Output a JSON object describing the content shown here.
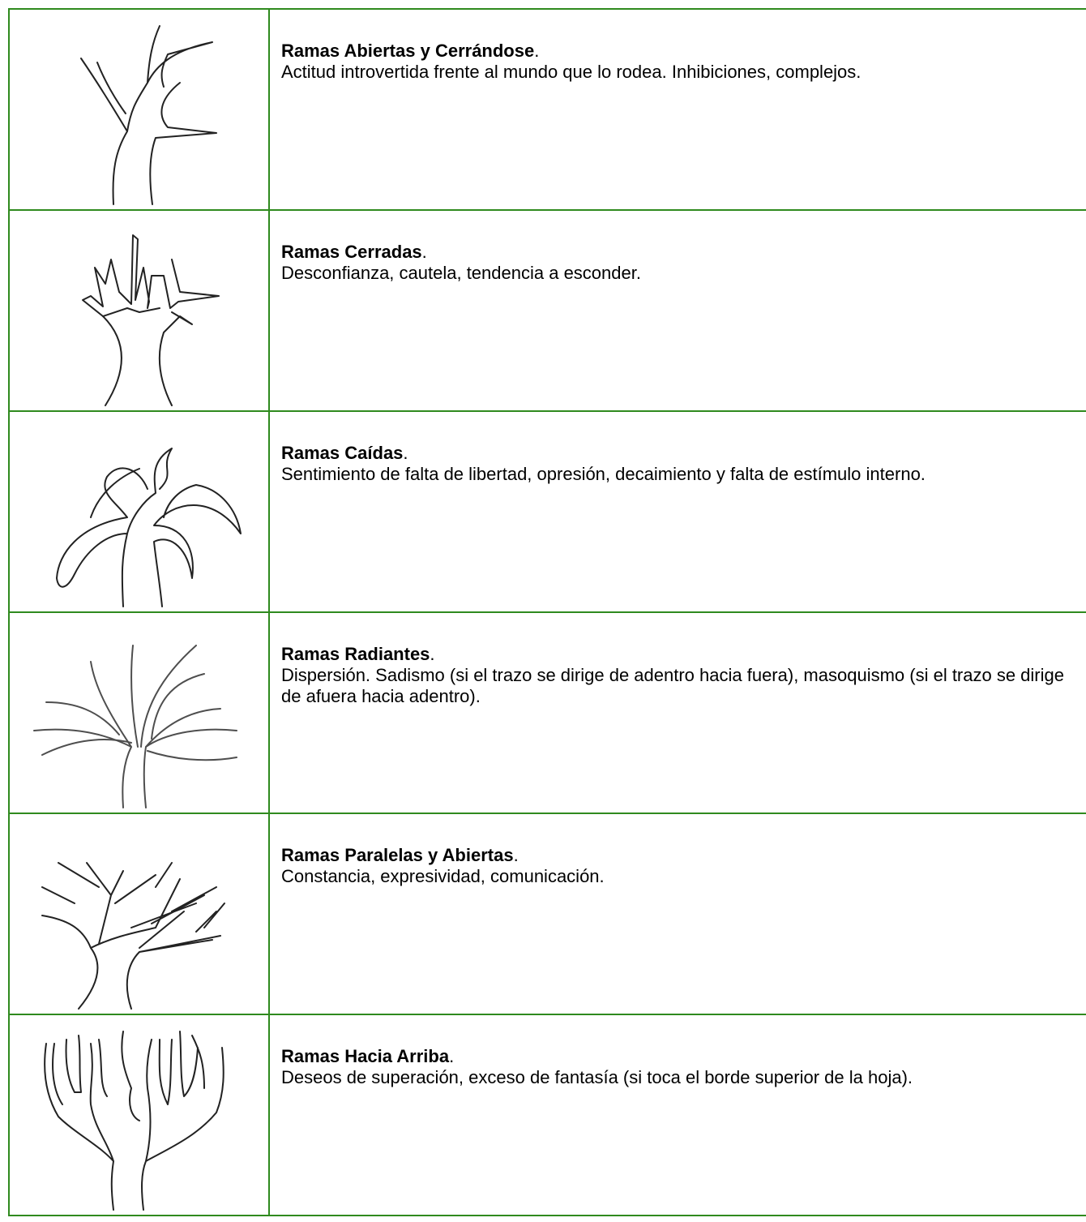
{
  "table": {
    "rows": [
      {
        "title": "Ramas Abiertas y Cerrándose",
        "title_end": ".",
        "description": "Actitud introvertida frente al mundo que lo rodea. Inhibiciones, complejos."
      },
      {
        "title": "Ramas Cerradas",
        "title_end": ".",
        "description": "Desconfianza, cautela, tendencia a esconder."
      },
      {
        "title": "Ramas Caídas",
        "title_end": ".",
        "description": "Sentimiento de falta de libertad, opresión, decaimiento y falta de estímulo interno."
      },
      {
        "title": "Ramas Radiantes",
        "title_end": ".",
        "description": "Dispersión. Sadismo (si el trazo se dirige de adentro hacia fuera), masoquismo (si el trazo se dirige de afuera hacia adentro)."
      },
      {
        "title": "Ramas Paralelas y Abiertas",
        "title_end": ".",
        "description": "Constancia, expresividad, comunicación."
      },
      {
        "title": "Ramas Hacia Arriba",
        "title_end": ".",
        "description": "Deseos de superación, exceso de fantasía (si toca el borde superior de la hoja)."
      }
    ]
  }
}
